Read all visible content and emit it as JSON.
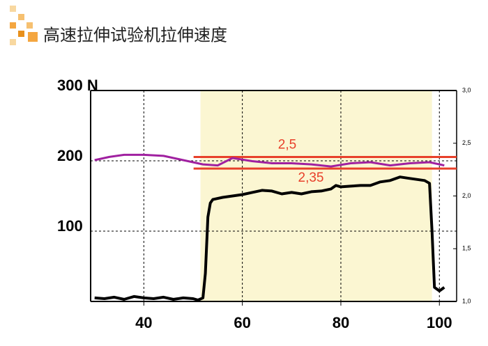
{
  "title": "高速拉伸试验机拉伸速度",
  "chart_data": {
    "type": "line",
    "xlim": [
      29.2,
      103.5
    ],
    "xticks": [
      40,
      60,
      80,
      100
    ],
    "ylim": [
      0,
      300
    ],
    "yticks": [
      100,
      200,
      {
        "value": 300,
        "label": "300 N"
      }
    ],
    "y2lim": [
      1.0,
      3.0
    ],
    "y2ticks": [
      {
        "value": 1.0,
        "label": "1,0"
      },
      {
        "value": 1.5,
        "label": "1,5"
      },
      {
        "value": 2.0,
        "label": "2,0"
      },
      {
        "value": 2.5,
        "label": "2,5"
      },
      {
        "value": 3.0,
        "label": "3,0"
      }
    ],
    "grid": true,
    "shaded_region": {
      "x": [
        51.5,
        98.5
      ],
      "color": "#fbf6d2"
    },
    "series": [
      {
        "color": "#000000",
        "x": [
          30,
          32,
          34,
          36,
          38,
          40,
          42,
          44,
          46,
          48,
          50,
          51,
          52,
          52.5,
          53,
          53.5,
          54,
          56,
          58,
          60,
          62,
          64,
          66,
          68,
          70,
          72,
          74,
          76,
          78,
          79,
          80,
          82,
          84,
          86,
          88,
          90,
          92,
          94,
          96,
          97,
          98,
          98.5,
          99,
          100,
          101
        ],
        "values": [
          5,
          4,
          6,
          3,
          7,
          5,
          4,
          6,
          3,
          5,
          4,
          2,
          5,
          40,
          120,
          140,
          145,
          148,
          150,
          152,
          155,
          158,
          157,
          153,
          155,
          153,
          156,
          157,
          160,
          165,
          163,
          164,
          165,
          165,
          170,
          172,
          177,
          175,
          173,
          172,
          168,
          100,
          20,
          15,
          20
        ]
      },
      {
        "color": "#a020a0",
        "axis": "y2",
        "x": [
          30,
          33,
          36,
          40,
          44,
          48,
          52,
          55,
          58,
          62,
          66,
          70,
          74,
          78,
          82,
          86,
          90,
          94,
          98,
          101
        ],
        "values": [
          2.34,
          2.37,
          2.39,
          2.39,
          2.38,
          2.34,
          2.3,
          2.29,
          2.36,
          2.33,
          2.31,
          2.31,
          2.3,
          2.28,
          2.31,
          2.32,
          2.29,
          2.31,
          2.32,
          2.29
        ]
      }
    ],
    "reference_lines": [
      {
        "axis": "y2",
        "value": 2.37,
        "x": [
          50.1,
          103.5
        ],
        "color": "#e8402a"
      },
      {
        "axis": "y2",
        "value": 2.26,
        "x": [
          50.1,
          103.5
        ],
        "color": "#e8402a"
      }
    ],
    "annotations": [
      {
        "text": "2,5",
        "color": "#e8402a"
      },
      {
        "text": "2,35",
        "color": "#e8402a"
      }
    ]
  }
}
